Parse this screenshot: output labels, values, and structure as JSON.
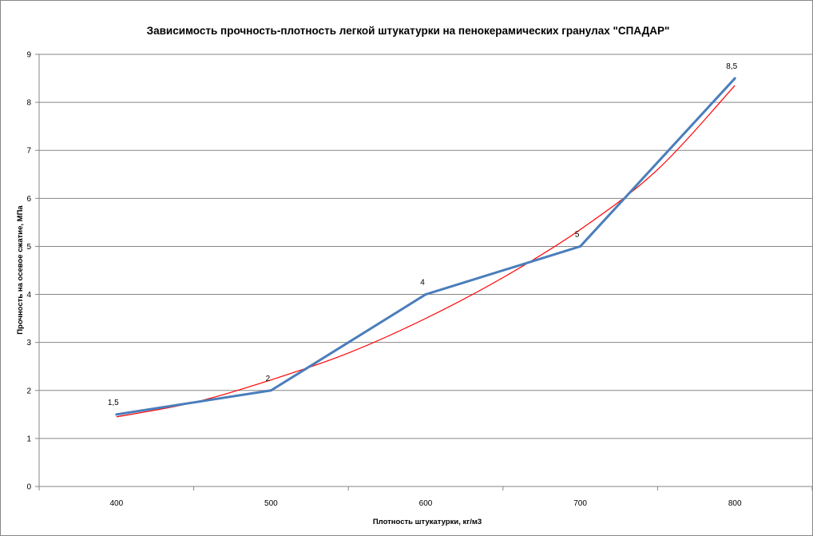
{
  "chart_data": {
    "type": "line",
    "title": "Зависимость прочность-плотность легкой штукатурки на пенокерамических гранулах \"СПАДАР\"",
    "xlabel": "Плотность штукатурки,  кг/м3",
    "ylabel": "Прочность на осевое сжатие, МПа",
    "categories": [
      "400",
      "500",
      "600",
      "700",
      "800"
    ],
    "yticks": [
      "0",
      "1",
      "2",
      "3",
      "4",
      "5",
      "6",
      "7",
      "8",
      "9"
    ],
    "ylim": [
      0,
      9
    ],
    "grid": "horizontal",
    "legend": "none",
    "series": [
      {
        "values": [
          1.5,
          2,
          4,
          5,
          8.5
        ],
        "data_labels": [
          "1,5",
          "2",
          "4",
          "5",
          "8,5"
        ],
        "color": "#4a7ebb"
      }
    ],
    "trendline": {
      "kind": "exponential",
      "x": [
        400,
        450,
        500,
        550,
        600,
        650,
        700,
        750,
        800
      ],
      "y": [
        1.45,
        1.75,
        2.22,
        2.78,
        3.5,
        4.35,
        5.35,
        6.6,
        8.35
      ],
      "color": "#ff0000"
    }
  }
}
